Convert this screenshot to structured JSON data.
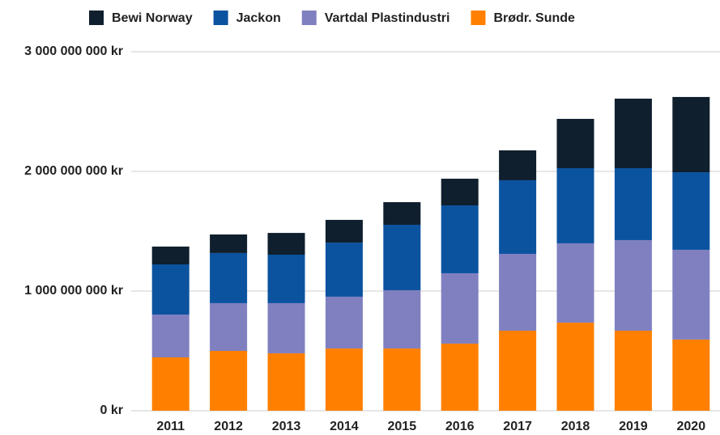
{
  "chart_data": {
    "type": "stacked_bar",
    "categories": [
      "2011",
      "2012",
      "2013",
      "2014",
      "2015",
      "2016",
      "2017",
      "2018",
      "2019",
      "2020"
    ],
    "series": [
      {
        "name": "Bewi Norway",
        "color": "#0f1f2e",
        "values": [
          149000000,
          155000000,
          182000000,
          190000000,
          189000000,
          223000000,
          250000000,
          412000000,
          581000000,
          629000000
        ]
      },
      {
        "name": "Jackon",
        "color": "#0b539f",
        "values": [
          419000000,
          419000000,
          405000000,
          452000000,
          547000000,
          567000000,
          615000000,
          628000000,
          601000000,
          648000000
        ]
      },
      {
        "name": "Vartdal Plastindustri",
        "color": "#8080c0",
        "values": [
          358000000,
          399000000,
          419000000,
          433000000,
          487000000,
          588000000,
          642000000,
          663000000,
          757000000,
          750000000
        ]
      },
      {
        "name": "Brødr. Sunde",
        "color": "#ff8000",
        "values": [
          446000000,
          500000000,
          480000000,
          520000000,
          520000000,
          561000000,
          669000000,
          736000000,
          669000000,
          595000000
        ]
      }
    ],
    "ylim": [
      0,
      3000000000
    ],
    "yticks": [
      {
        "value": 0,
        "label": "0 kr"
      },
      {
        "value": 1000000000,
        "label": "1 000 000 000 kr"
      },
      {
        "value": 2000000000,
        "label": "2 000 000 000 kr"
      },
      {
        "value": 3000000000,
        "label": "3 000 000 000 kr"
      }
    ],
    "grid": true,
    "legend": "top"
  }
}
